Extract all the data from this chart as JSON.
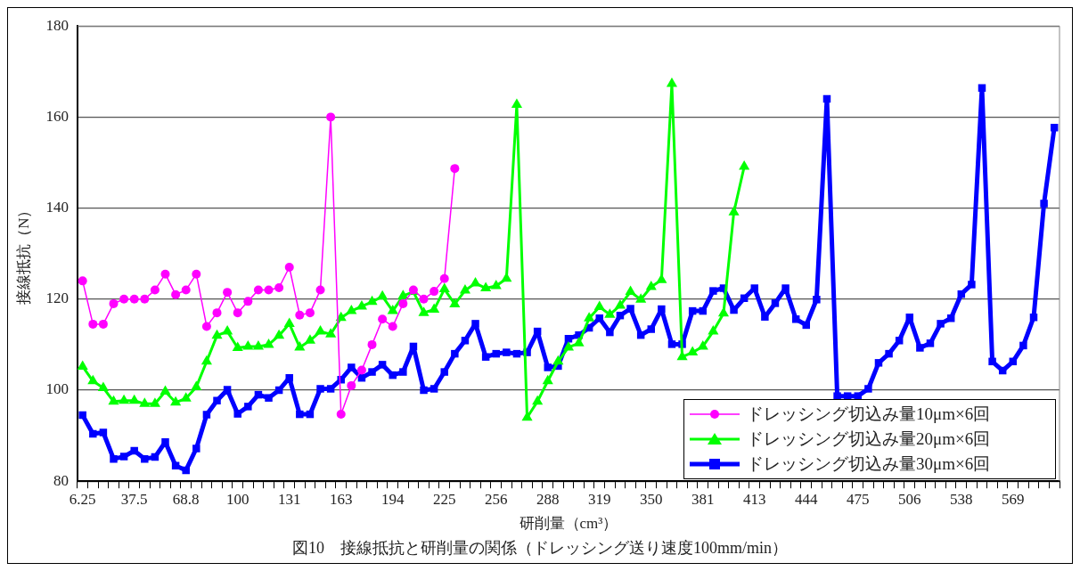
{
  "chart_data": {
    "type": "line",
    "xlabel": "研削量（cm³）",
    "ylabel": "接線抵抗（N）",
    "annotations": [
      "図10　接線抵抗と研削量の関係（ドレッシング送り速度100mm/min）"
    ],
    "categories": [
      "6.25",
      null,
      null,
      null,
      null,
      "37.5",
      null,
      null,
      null,
      null,
      "68.8",
      null,
      null,
      null,
      null,
      "100",
      null,
      null,
      null,
      null,
      "131",
      null,
      null,
      null,
      null,
      "163",
      null,
      null,
      null,
      null,
      "194",
      null,
      null,
      null,
      null,
      "225",
      null,
      null,
      null,
      null,
      "256",
      null,
      null,
      null,
      null,
      "288",
      null,
      null,
      null,
      null,
      "319",
      null,
      null,
      null,
      null,
      "350",
      null,
      null,
      null,
      null,
      "381",
      null,
      null,
      null,
      null,
      "413",
      null,
      null,
      null,
      null,
      "444",
      null,
      null,
      null,
      null,
      "475",
      null,
      null,
      null,
      null,
      "506",
      null,
      null,
      null,
      null,
      "538",
      null,
      null,
      null,
      null,
      "569",
      null,
      null,
      null,
      null
    ],
    "ylim": [
      80,
      180
    ],
    "yticks": [
      80,
      100,
      120,
      140,
      160,
      180
    ],
    "grid": "y",
    "legend": "bottom right",
    "line_style": "solid",
    "series": [
      {
        "name": "ドレッシング切込み量10μm×6回",
        "color": "#ff00ff",
        "marker": "circle",
        "values": [
          124,
          114.5,
          114.5,
          119,
          120,
          120,
          120,
          122,
          125.5,
          121,
          122,
          125.5,
          114,
          117,
          121.5,
          117,
          119.5,
          122,
          122,
          122.5,
          127,
          116.5,
          117,
          122,
          160,
          94.7,
          101,
          104.4,
          110,
          115.6,
          114,
          119,
          122,
          120,
          121.7,
          124.5,
          148.7,
          null,
          null,
          null,
          null,
          null,
          null,
          null,
          null,
          null,
          null,
          null,
          null,
          null,
          null,
          null,
          null,
          null,
          null,
          null,
          null,
          null,
          null,
          null,
          null,
          null,
          null,
          null,
          null,
          null,
          null,
          null,
          null,
          null,
          null,
          null,
          null,
          null,
          null,
          null,
          null,
          null,
          null,
          null,
          null,
          null,
          null,
          null,
          null,
          null,
          null,
          null,
          null,
          null,
          null,
          null,
          null,
          null,
          null
        ]
      },
      {
        "name": "ドレッシング切込み量20μm×6回",
        "color": "#00ff00",
        "marker": "triangle",
        "values": [
          105.2,
          102,
          100.5,
          97.5,
          97.7,
          97.7,
          97,
          97,
          99.7,
          97.3,
          98.2,
          100.7,
          106.3,
          112,
          112.9,
          109.3,
          109.6,
          109.6,
          110,
          112,
          114.6,
          109.4,
          110.9,
          112.9,
          112.3,
          115.9,
          117.4,
          118.4,
          119.4,
          120.6,
          117.4,
          120.7,
          121.6,
          117,
          117.7,
          122.2,
          118.9,
          121.9,
          123.5,
          122.4,
          122.9,
          124.5,
          162.7,
          94,
          97.5,
          102,
          106.3,
          109.4,
          110.3,
          115.8,
          118.3,
          116.6,
          118.6,
          121.6,
          119.9,
          122.7,
          124.2,
          167.3,
          107.3,
          108.3,
          109.6,
          112.9,
          116.9,
          139.1,
          149.1,
          null,
          null,
          null,
          null,
          null,
          null,
          null,
          null,
          null,
          null,
          null,
          null,
          null,
          null,
          null,
          null,
          null,
          null,
          null,
          null,
          null,
          null,
          null,
          null,
          null,
          null,
          null,
          null,
          null,
          null
        ]
      },
      {
        "name": "ドレッシング切込み量30μm×6回",
        "color": "#0000ff",
        "marker": "square",
        "values": [
          94.5,
          90.4,
          90.7,
          84.9,
          85.4,
          86.7,
          84.9,
          85.3,
          88.6,
          83.4,
          82.4,
          87.2,
          94.6,
          97.7,
          100.1,
          94.8,
          96.4,
          99,
          98.3,
          100,
          102.7,
          94.7,
          94.7,
          100.3,
          100.3,
          102.3,
          105,
          102.7,
          104,
          105.6,
          103.3,
          104,
          109.6,
          100,
          100.3,
          104,
          108,
          110.9,
          114.6,
          107.3,
          108,
          108.3,
          108,
          108.3,
          112.9,
          105,
          105.3,
          111.3,
          112.1,
          113.7,
          115.8,
          112.7,
          116.4,
          117.9,
          112.1,
          113.4,
          117.8,
          110.1,
          110.1,
          117.4,
          117.4,
          121.8,
          122.4,
          117.6,
          120.2,
          122.4,
          116.1,
          119.1,
          122.4,
          115.6,
          114.3,
          119.9,
          164,
          98.7,
          98.7,
          98.7,
          100.3,
          106,
          108,
          110.9,
          116,
          109.3,
          110.3,
          114.6,
          115.8,
          121.1,
          123.2,
          166.4,
          106.3,
          104.3,
          106.3,
          109.8,
          116,
          141,
          157.7
        ]
      }
    ]
  }
}
